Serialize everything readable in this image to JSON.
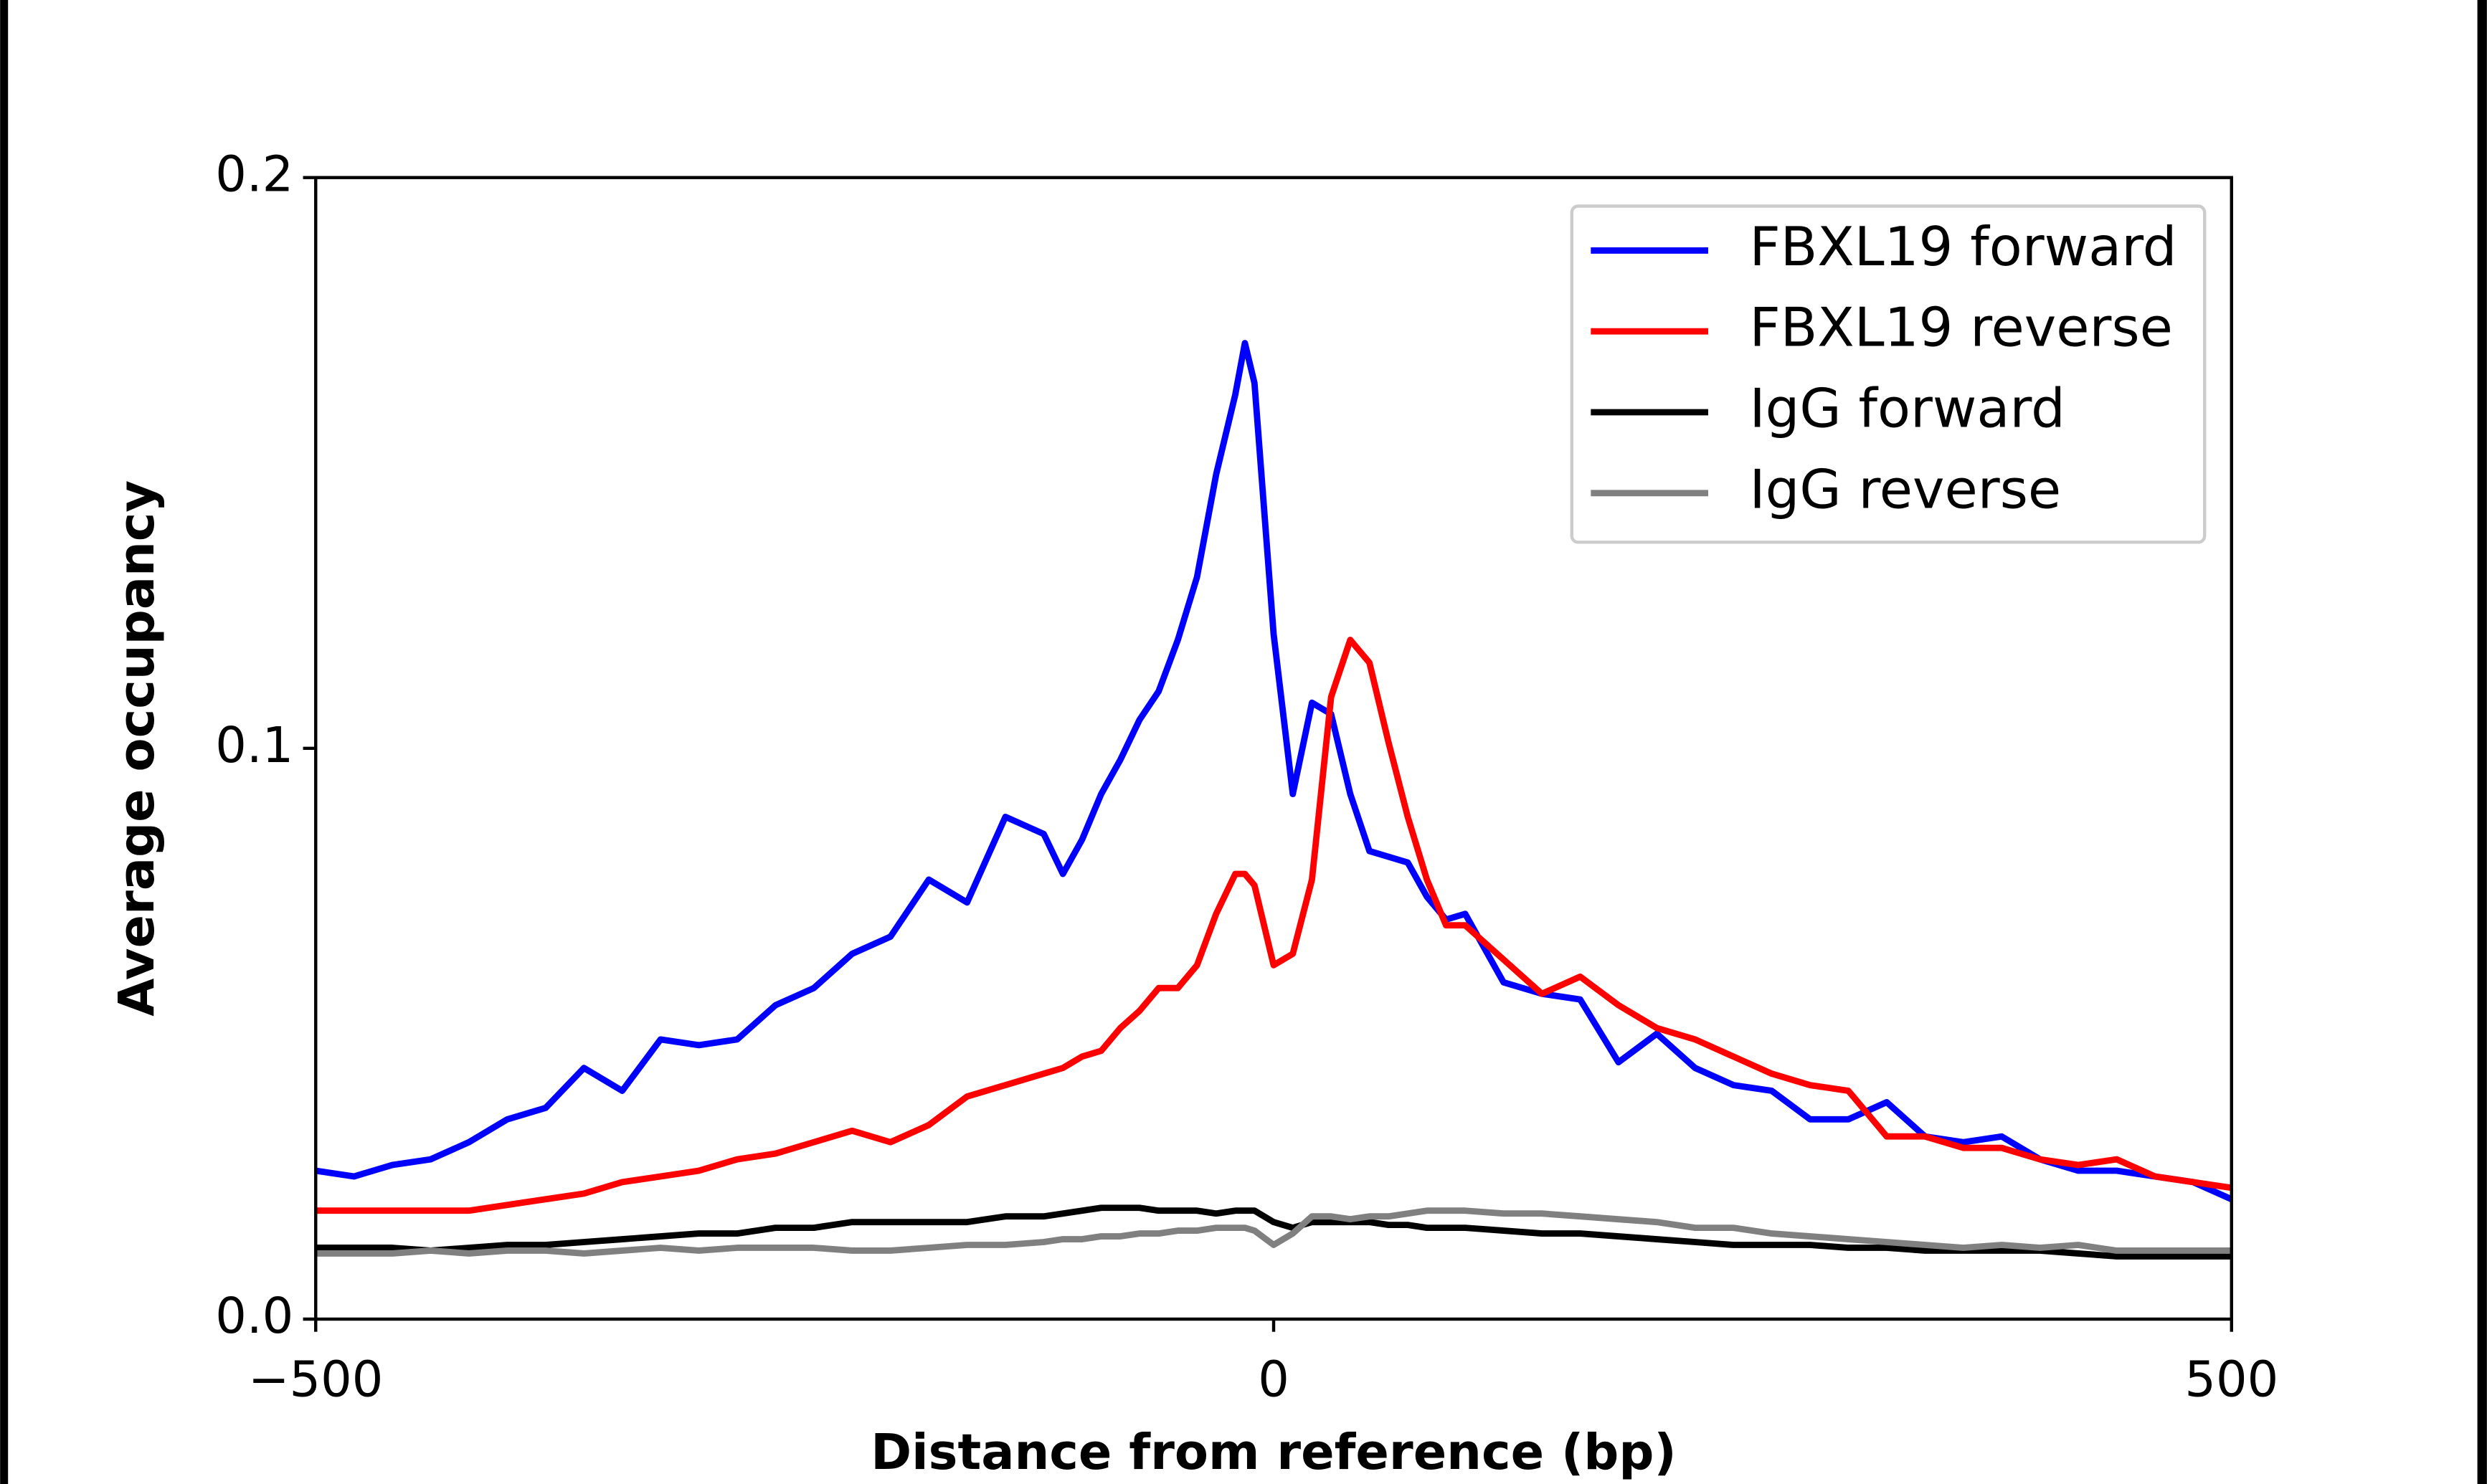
{
  "chart_data": {
    "type": "line",
    "xlabel": "Distance from reference (bp)",
    "ylabel": "Average occupancy",
    "x": [
      -500,
      -480,
      -460,
      -440,
      -420,
      -400,
      -380,
      -360,
      -340,
      -320,
      -300,
      -280,
      -260,
      -240,
      -220,
      -200,
      -180,
      -160,
      -140,
      -120,
      -110,
      -100,
      -90,
      -80,
      -70,
      -60,
      -50,
      -40,
      -30,
      -20,
      -15,
      -10,
      0,
      10,
      20,
      30,
      40,
      50,
      60,
      70,
      80,
      90,
      100,
      120,
      140,
      160,
      180,
      200,
      220,
      240,
      260,
      280,
      300,
      320,
      340,
      360,
      380,
      400,
      420,
      440,
      460,
      480,
      500
    ],
    "series": [
      {
        "name": "FBXL19 forward",
        "color": "#0000ff",
        "values": [
          0.026,
          0.025,
          0.027,
          0.028,
          0.031,
          0.035,
          0.037,
          0.044,
          0.04,
          0.049,
          0.048,
          0.049,
          0.055,
          0.058,
          0.064,
          0.067,
          0.077,
          0.073,
          0.088,
          0.085,
          0.078,
          0.084,
          0.092,
          0.098,
          0.105,
          0.11,
          0.119,
          0.13,
          0.148,
          0.162,
          0.171,
          0.164,
          0.12,
          0.092,
          0.108,
          0.106,
          0.092,
          0.082,
          0.081,
          0.08,
          0.074,
          0.07,
          0.071,
          0.059,
          0.057,
          0.056,
          0.045,
          0.05,
          0.044,
          0.041,
          0.04,
          0.035,
          0.035,
          0.038,
          0.032,
          0.031,
          0.032,
          0.028,
          0.026,
          0.026,
          0.025,
          0.024,
          0.021
        ]
      },
      {
        "name": "FBXL19 reverse",
        "color": "#ff0000",
        "values": [
          0.019,
          0.019,
          0.019,
          0.019,
          0.019,
          0.02,
          0.021,
          0.022,
          0.024,
          0.025,
          0.026,
          0.028,
          0.029,
          0.031,
          0.033,
          0.031,
          0.034,
          0.039,
          0.041,
          0.043,
          0.044,
          0.046,
          0.047,
          0.051,
          0.054,
          0.058,
          0.058,
          0.062,
          0.071,
          0.078,
          0.078,
          0.076,
          0.062,
          0.064,
          0.077,
          0.109,
          0.119,
          0.115,
          0.101,
          0.088,
          0.077,
          0.069,
          0.069,
          0.063,
          0.057,
          0.06,
          0.055,
          0.051,
          0.049,
          0.046,
          0.043,
          0.041,
          0.04,
          0.032,
          0.032,
          0.03,
          0.03,
          0.028,
          0.027,
          0.028,
          0.025,
          0.024,
          0.023
        ]
      },
      {
        "name": "IgG forward",
        "color": "#000000",
        "values": [
          0.0125,
          0.0125,
          0.0125,
          0.012,
          0.0125,
          0.013,
          0.013,
          0.0135,
          0.014,
          0.0145,
          0.015,
          0.015,
          0.016,
          0.016,
          0.017,
          0.017,
          0.017,
          0.017,
          0.018,
          0.018,
          0.0185,
          0.019,
          0.0195,
          0.0195,
          0.0195,
          0.019,
          0.019,
          0.019,
          0.0185,
          0.019,
          0.019,
          0.019,
          0.017,
          0.016,
          0.017,
          0.017,
          0.017,
          0.017,
          0.0165,
          0.0165,
          0.016,
          0.016,
          0.016,
          0.0155,
          0.015,
          0.015,
          0.0145,
          0.014,
          0.0135,
          0.013,
          0.013,
          0.013,
          0.0125,
          0.0125,
          0.012,
          0.012,
          0.012,
          0.012,
          0.0115,
          0.011,
          0.011,
          0.011,
          0.011
        ]
      },
      {
        "name": "IgG reverse",
        "color": "#808080",
        "values": [
          0.0115,
          0.0115,
          0.0115,
          0.012,
          0.0115,
          0.012,
          0.012,
          0.0115,
          0.012,
          0.0125,
          0.012,
          0.0125,
          0.0125,
          0.0125,
          0.012,
          0.012,
          0.0125,
          0.013,
          0.013,
          0.0135,
          0.014,
          0.014,
          0.0145,
          0.0145,
          0.015,
          0.015,
          0.0155,
          0.0155,
          0.016,
          0.016,
          0.016,
          0.0155,
          0.013,
          0.015,
          0.018,
          0.018,
          0.0175,
          0.018,
          0.018,
          0.0185,
          0.019,
          0.019,
          0.019,
          0.0185,
          0.0185,
          0.018,
          0.0175,
          0.017,
          0.016,
          0.016,
          0.015,
          0.0145,
          0.014,
          0.0135,
          0.013,
          0.0125,
          0.013,
          0.0125,
          0.013,
          0.012,
          0.012,
          0.012,
          0.012
        ]
      }
    ],
    "xlim": [
      -500,
      500
    ],
    "xticks": [
      {
        "value": -500,
        "label": "−500"
      },
      0,
      500
    ],
    "ylim": [
      0,
      0.2
    ],
    "yticks": [
      {
        "value": 0,
        "label": "0.0"
      },
      0.1,
      0.2
    ],
    "legend": "upper right",
    "grid": false
  }
}
